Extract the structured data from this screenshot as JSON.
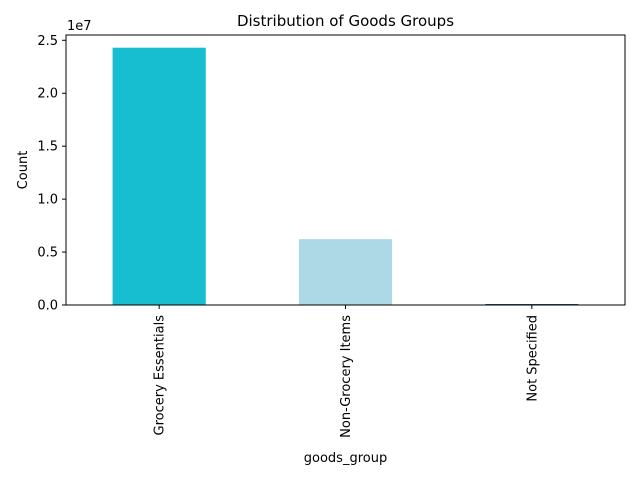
{
  "chart_data": {
    "type": "bar",
    "title": "Distribution of Goods Groups",
    "xlabel": "goods_group",
    "ylabel": "Count",
    "offset_text": "1e7",
    "categories": [
      "Grocery Essentials",
      "Non-Grocery Items",
      "Not Specified"
    ],
    "values": [
      24300000,
      6220000,
      90000
    ],
    "bar_colors": [
      "#17becf",
      "#add8e6",
      "#1f5f8b"
    ],
    "ylim": [
      0,
      25500000
    ],
    "yticks": [
      0,
      5000000,
      10000000,
      15000000,
      20000000,
      25000000
    ],
    "ytick_labels": [
      "0.0",
      "0.5",
      "1.0",
      "1.5",
      "2.0",
      "2.5"
    ],
    "grid": false,
    "legend": false
  }
}
